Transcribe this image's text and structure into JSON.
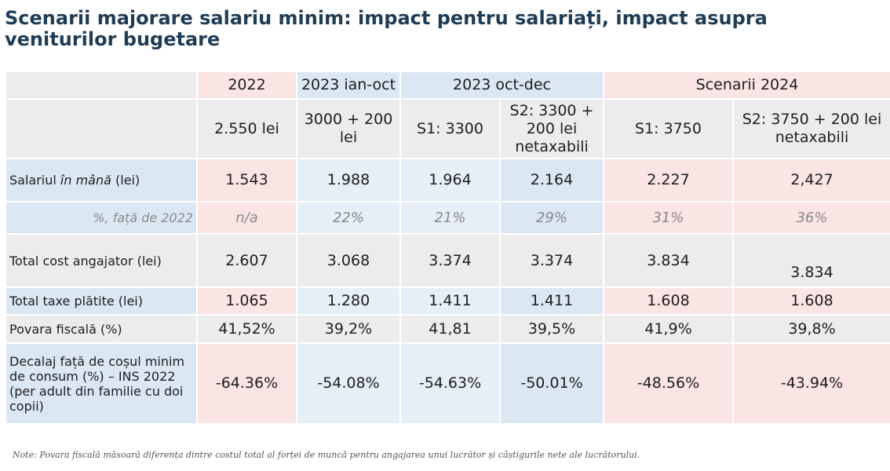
{
  "title": "Scenarii majorare salariu minim: impact pentru salariați, impact asupra veniturilor bugetare",
  "headers": {
    "groups": [
      "2022",
      "2023 ian-oct",
      "2023 oct-dec",
      "Scenarii 2024"
    ],
    "sub": [
      "2.550 lei",
      "3000 + 200 lei",
      "S1: 3300",
      "S2: 3300 + 200 lei netaxabili",
      "S1: 3750",
      "S2: 3750 + 200 lei netaxabili"
    ]
  },
  "rows": {
    "salary": {
      "label_pre": "Salariul ",
      "label_em": "în mână",
      "label_post": " (lei)",
      "values": [
        "1.543",
        "1.988",
        "1.964",
        "2.164",
        "2.227",
        "2,427"
      ]
    },
    "pct": {
      "label": "%, față de 2022",
      "values": [
        "n/a",
        "22%",
        "21%",
        "29%",
        "31%",
        "36%"
      ]
    },
    "cost": {
      "label": "Total cost angajator (lei)",
      "values": [
        "2.607",
        "3.068",
        "3.374",
        "3.374",
        "3.834",
        "3.834"
      ]
    },
    "taxes": {
      "label": "Total taxe plătite (lei)",
      "values": [
        "1.065",
        "1.280",
        "1.411",
        "1.411",
        "1.608",
        "1.608"
      ]
    },
    "burden": {
      "label": "Povara fiscală (%)",
      "values": [
        "41,52%",
        "39,2%",
        "41,81",
        "39,5%",
        "41,9%",
        "39,8%"
      ]
    },
    "gap": {
      "label": "Decalaj față de coșul minim de consum (%) – INS 2022 (per adult din familie cu doi copii)",
      "values": [
        "-64.36%",
        "-54.08%",
        "-54.63%",
        "-50.01%",
        "-48.56%",
        "-43.94%"
      ]
    }
  },
  "note": "Note: Povara fiscală măsoară diferența dintre costul total al forței de muncă pentru angajarea unui lucrător și câștigurile nete ale lucrătorului."
}
